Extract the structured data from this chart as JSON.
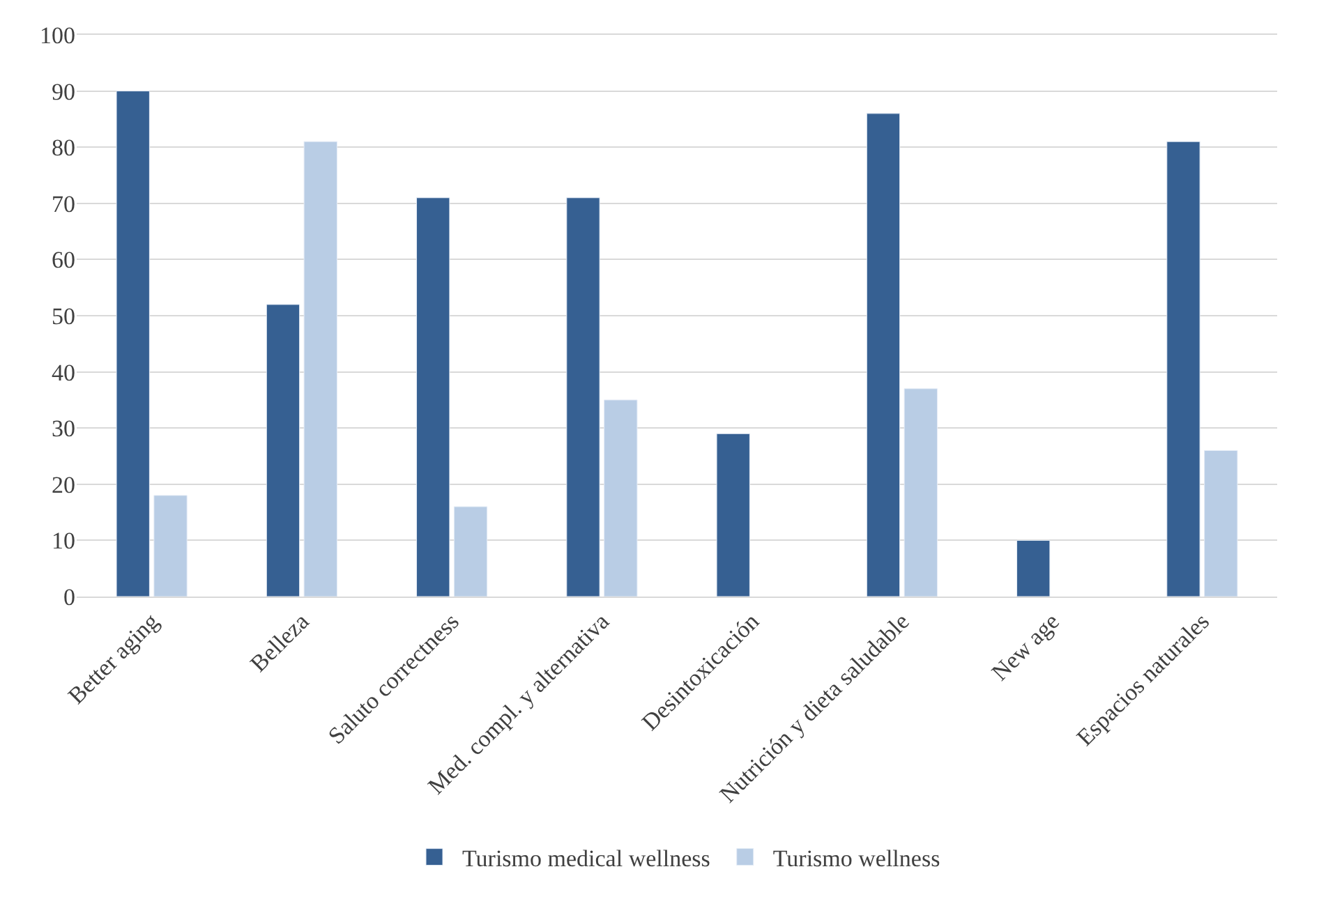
{
  "chart_data": {
    "type": "bar",
    "categories": [
      "Better aging",
      "Belleza",
      "Saluto correctness",
      "Med. compl. y alternativa",
      "Desintoxicación",
      "Nutrición y dieta saludable",
      "New age",
      "Espacios naturales"
    ],
    "series": [
      {
        "name": "Turismo medical wellness",
        "color": "#366092",
        "values": [
          90,
          52,
          71,
          71,
          29,
          86,
          10,
          81
        ]
      },
      {
        "name": "Turismo wellness",
        "color": "#b9cde5",
        "values": [
          18,
          81,
          16,
          35,
          null,
          37,
          null,
          26
        ]
      }
    ],
    "ylim": [
      0,
      100
    ],
    "yticks": [
      0,
      10,
      20,
      30,
      40,
      50,
      60,
      70,
      80,
      90,
      100
    ],
    "grid": "y",
    "legend": "bottom"
  }
}
